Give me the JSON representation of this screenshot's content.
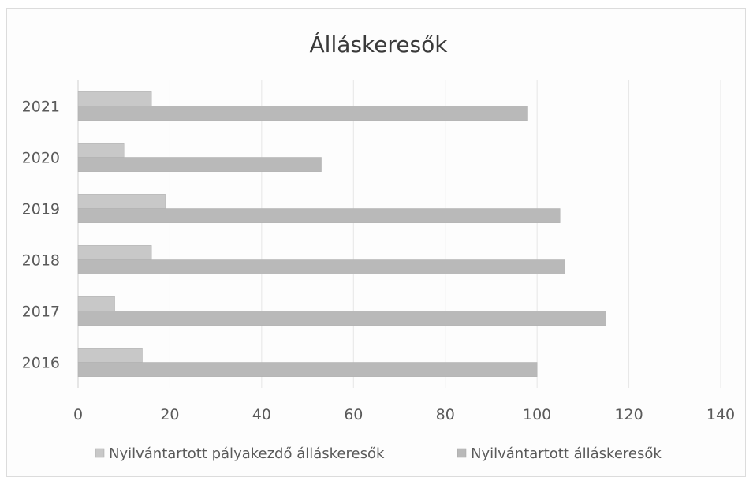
{
  "chart_data": {
    "type": "bar",
    "orientation": "horizontal",
    "title": "Álláskeresők",
    "categories": [
      "2016",
      "2017",
      "2018",
      "2019",
      "2020",
      "2021"
    ],
    "xlim": [
      0,
      140
    ],
    "xticks": [
      "0",
      "20",
      "40",
      "60",
      "80",
      "100",
      "120",
      "140"
    ],
    "grid": "vertical",
    "legend_position": "bottom",
    "series": [
      {
        "name": "Nyilvántartott pályakezdő álláskeresők",
        "color": "#c8c8c8",
        "values": [
          14,
          8,
          16,
          19,
          10,
          16
        ]
      },
      {
        "name": "Nyilvántartott álláskeresők",
        "color": "#b9b9b9",
        "values": [
          100,
          115,
          106,
          105,
          53,
          98
        ]
      }
    ]
  }
}
